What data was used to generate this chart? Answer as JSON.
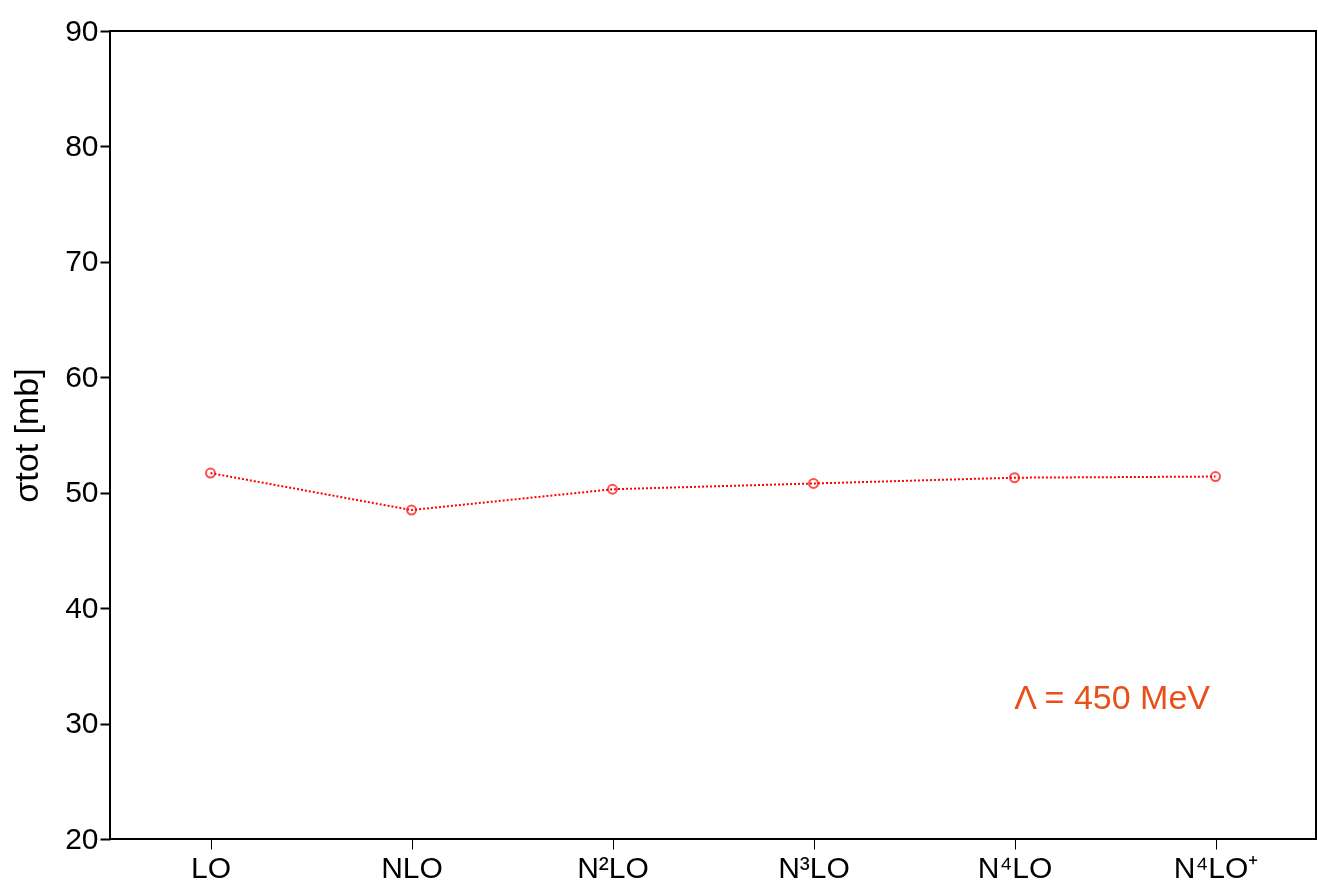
{
  "chart_data": {
    "type": "line",
    "ylabel": "σtot [mb]",
    "categories": [
      "LO",
      "NLO",
      "N²LO",
      "N³LO",
      "N⁴LO",
      "N⁴LO⁺"
    ],
    "series": [
      {
        "color": "#ff0000",
        "values": [
          51.7,
          48.5,
          50.3,
          50.8,
          51.3,
          51.4
        ]
      }
    ],
    "ylim": [
      20,
      90
    ],
    "yticks": [
      20,
      30,
      40,
      50,
      60,
      70,
      80,
      90
    ],
    "grid": false,
    "marker": "circle",
    "line_style": "dotted",
    "annotations": [
      "Λ = 450 MeV"
    ]
  }
}
